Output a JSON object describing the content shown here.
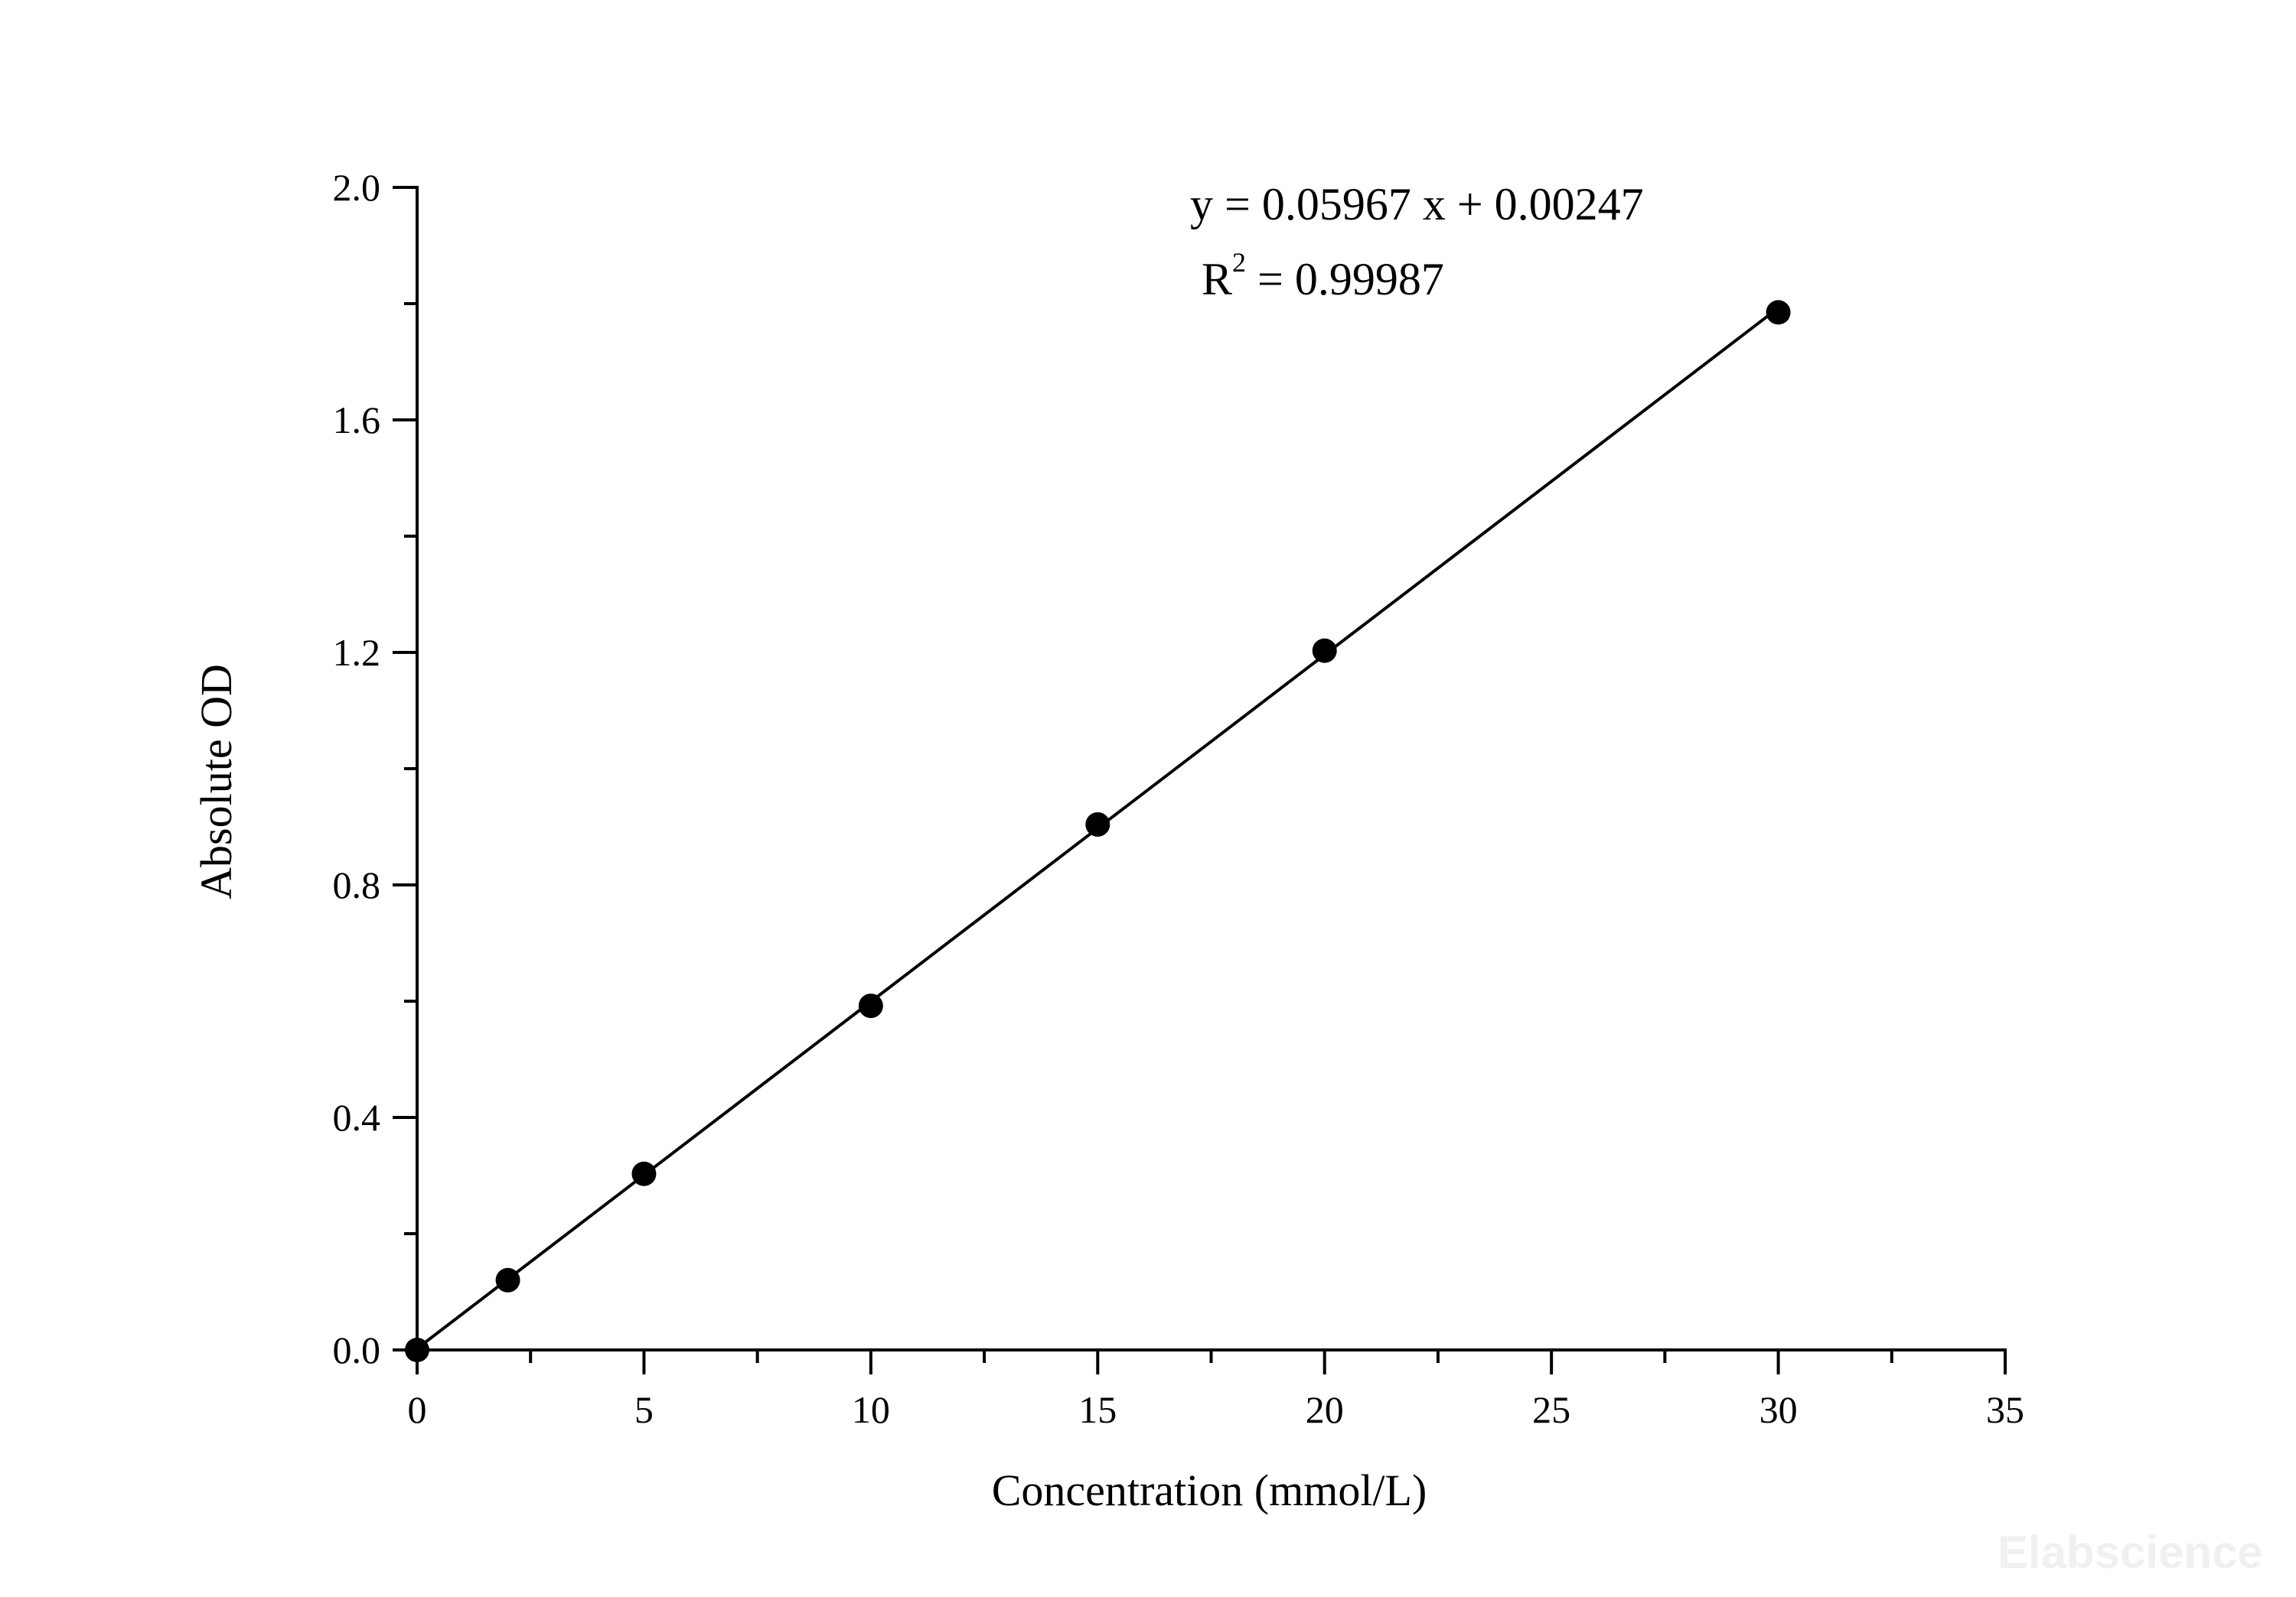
{
  "chart_data": {
    "type": "scatter",
    "xlabel": "Concentration (mmol/L)",
    "ylabel": "Absolute OD",
    "xlim": [
      0,
      35
    ],
    "ylim": [
      0,
      2.0
    ],
    "x_ticks": [
      0,
      5,
      10,
      15,
      20,
      25,
      30,
      35
    ],
    "x_tick_labels": [
      "0",
      "5",
      "10",
      "15",
      "20",
      "25",
      "30",
      "35"
    ],
    "y_ticks": [
      0.0,
      0.4,
      0.8,
      1.2,
      1.6,
      2.0
    ],
    "y_tick_labels": [
      "0.0",
      "0.4",
      "0.8",
      "1.2",
      "1.6",
      "2.0"
    ],
    "x_minor_step": 2.5,
    "y_minor_step": 0.2,
    "grid": false,
    "series": [
      {
        "x": [
          0,
          2,
          5,
          10,
          15,
          20,
          30
        ],
        "y": [
          0.0,
          0.12,
          0.303,
          0.592,
          0.904,
          1.203,
          1.785
        ]
      }
    ],
    "fit": {
      "slope": 0.05967,
      "intercept": 0.00247,
      "x_range": [
        0,
        30
      ]
    },
    "annotations": {
      "equation": "y = 0.05967 x + 0.00247",
      "r2_prefix": "R",
      "r2_exponent": "2",
      "r2_value": " = 0.99987"
    },
    "watermark": "Elabscience"
  }
}
